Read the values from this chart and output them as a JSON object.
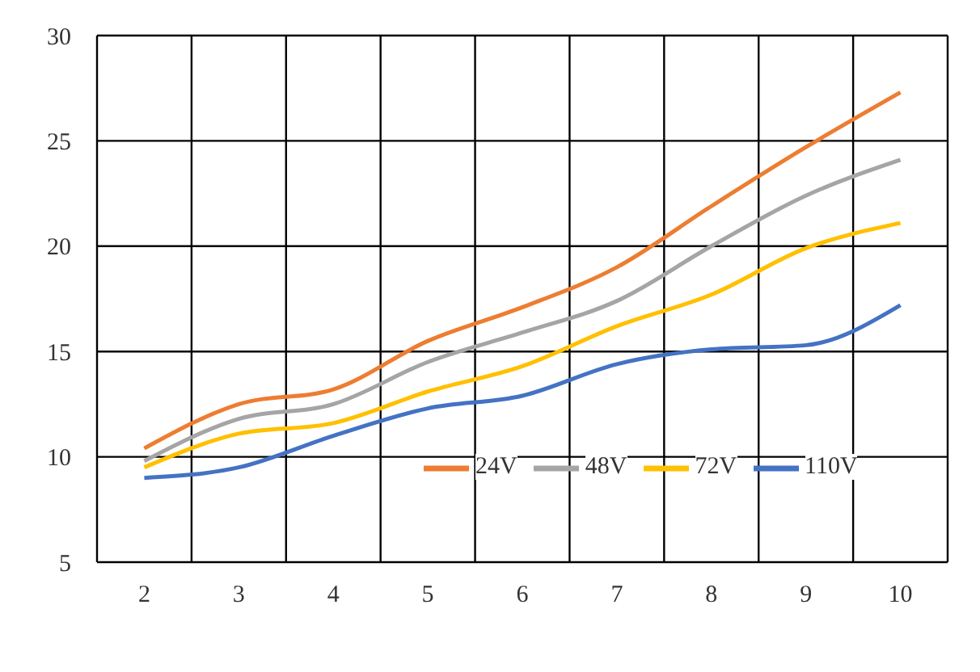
{
  "chart_data": {
    "type": "line",
    "categories": [
      "2",
      "3",
      "4",
      "5",
      "6",
      "7",
      "8",
      "9",
      "10"
    ],
    "series": [
      {
        "name": "24V",
        "color": "#ed7d31",
        "values": [
          10.4,
          12.5,
          13.2,
          15.5,
          17.1,
          19.0,
          21.9,
          24.7,
          27.3
        ]
      },
      {
        "name": "48V",
        "color": "#a5a5a5",
        "values": [
          9.8,
          11.8,
          12.5,
          14.5,
          15.9,
          17.4,
          20.0,
          22.4,
          24.1
        ]
      },
      {
        "name": "72V",
        "color": "#ffc000",
        "values": [
          9.5,
          11.1,
          11.6,
          13.1,
          14.3,
          16.2,
          17.7,
          19.9,
          21.1
        ]
      },
      {
        "name": "110V",
        "color": "#4472c4",
        "values": [
          9.0,
          9.5,
          11.0,
          12.3,
          12.9,
          14.4,
          15.1,
          15.3,
          17.2
        ]
      }
    ],
    "ylim": [
      5,
      30
    ],
    "yticks": [
      5,
      10,
      15,
      20,
      25,
      30
    ],
    "grid": true,
    "legend": "right",
    "marker": "none",
    "line_style": "solid"
  }
}
